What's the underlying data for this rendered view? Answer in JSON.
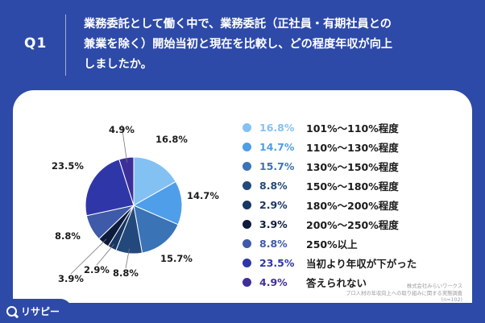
{
  "header": {
    "question_no": "Q1",
    "question_lines": [
      "業務委託として働く中で、業務委託（正社員・有期社員との",
      "兼業を除く）開始当初と現在を比較し、どの程度年収が向上",
      "しましたか。"
    ]
  },
  "chart_data": {
    "type": "pie",
    "unit": "%",
    "slices": [
      {
        "label": "101%〜110%程度",
        "value": 16.8,
        "display": "16.8%",
        "color": "#84c1f3"
      },
      {
        "label": "110%〜130%程度",
        "value": 14.7,
        "display": "14.7%",
        "color": "#4f9ee9"
      },
      {
        "label": "130%〜150%程度",
        "value": 15.7,
        "display": "15.7%",
        "color": "#3a73b6"
      },
      {
        "label": "150%〜180%程度",
        "value": 8.8,
        "display": "8.8%",
        "color": "#23497c"
      },
      {
        "label": "180%〜200%程度",
        "value": 2.9,
        "display": "2.9%",
        "color": "#183663"
      },
      {
        "label": "200%〜250%程度",
        "value": 3.9,
        "display": "3.9%",
        "color": "#0d1b3c"
      },
      {
        "label": "250%以上",
        "value": 8.8,
        "display": "8.8%",
        "color": "#3f5aa8"
      },
      {
        "label": "当初より年収が下がった",
        "value": 23.5,
        "display": "23.5%",
        "color": "#2f37a8"
      },
      {
        "label": "答えられない",
        "value": 4.9,
        "display": "4.9%",
        "color": "#3d2f9a"
      }
    ],
    "legend_placement": "right"
  },
  "footer": {
    "lines": [
      "株式会社みらいワークス",
      "プロ人材の年収向上への取り組みに関する実態調査",
      "(n=102)"
    ]
  },
  "logo": {
    "text": "リサピー"
  },
  "colors": {
    "background": "#2e4aa8",
    "card": "#ffffff"
  }
}
